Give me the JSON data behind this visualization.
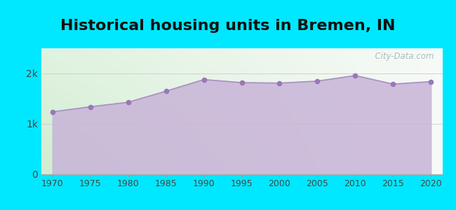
{
  "title": "Historical housing units in Bremen, IN",
  "years": [
    1970,
    1975,
    1980,
    1985,
    1990,
    1995,
    2000,
    2005,
    2010,
    2015,
    2020
  ],
  "values": [
    1240,
    1340,
    1430,
    1650,
    1880,
    1820,
    1810,
    1850,
    1960,
    1790,
    1840
  ],
  "ylim": [
    0,
    2500
  ],
  "ytick_labels": [
    "0",
    "1k",
    "2k"
  ],
  "ytick_vals": [
    0,
    1000,
    2000
  ],
  "fill_color": "#c8b4d8",
  "fill_alpha": 0.85,
  "line_color": "#a890c0",
  "marker_color": "#9878b8",
  "outer_bg": "#00e8ff",
  "title_fontsize": 16,
  "watermark": "  City-Data.com",
  "xlim_left": 1968.5,
  "xlim_right": 2021.5
}
